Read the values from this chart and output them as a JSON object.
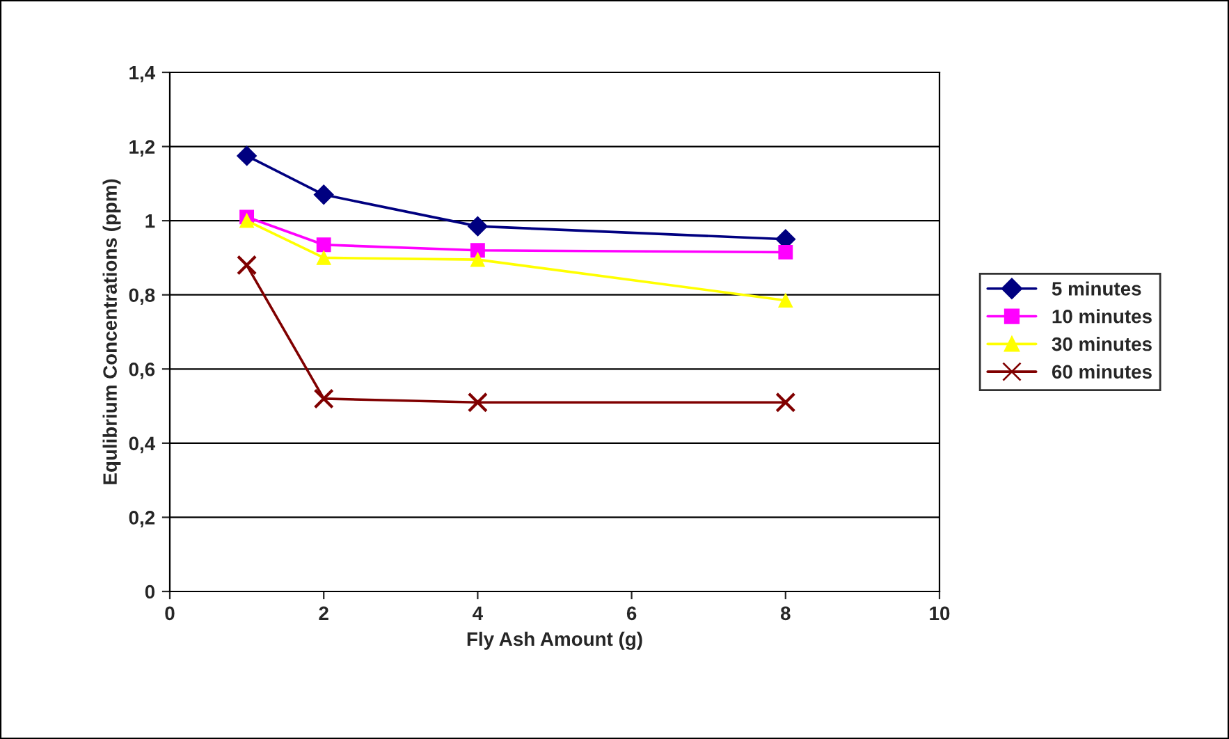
{
  "chart_data": {
    "type": "line",
    "xlabel": "Fly Ash Amount (g)",
    "ylabel": "Equlibrium Concentrations (ppm)",
    "x": [
      1,
      2,
      4,
      8
    ],
    "series": [
      {
        "name": "5 minutes",
        "color": "#000080",
        "marker": "diamond",
        "values": [
          1.175,
          1.07,
          0.985,
          0.95
        ]
      },
      {
        "name": "10 minutes",
        "color": "#ff00ff",
        "marker": "square",
        "values": [
          1.01,
          0.935,
          0.92,
          0.915
        ]
      },
      {
        "name": "30 minutes",
        "color": "#ffff00",
        "marker": "triangle",
        "values": [
          1.0,
          0.9,
          0.895,
          0.785
        ]
      },
      {
        "name": "60 minutes",
        "color": "#800000",
        "marker": "cross",
        "values": [
          0.88,
          0.52,
          0.51,
          0.51
        ]
      }
    ],
    "xlim": [
      0,
      10
    ],
    "xticks": [
      0,
      2,
      4,
      6,
      8,
      10
    ],
    "ylim": [
      0,
      1.4
    ],
    "yticks": [
      0,
      {
        "value": 0.2,
        "label": "0,2"
      },
      {
        "value": 0.4,
        "label": "0,4"
      },
      {
        "value": 0.6,
        "label": "0,6"
      },
      {
        "value": 0.8,
        "label": "0,8"
      },
      1,
      {
        "value": 1.2,
        "label": "1,2"
      },
      {
        "value": 1.4,
        "label": "1,4"
      }
    ],
    "grid": "y",
    "legend": "right"
  }
}
